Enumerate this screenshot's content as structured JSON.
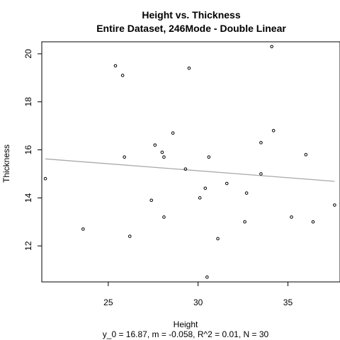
{
  "chart_data": {
    "type": "scatter",
    "title": "Height vs. Thickness",
    "subtitle": "Entire Dataset, 246Mode - Double Linear",
    "xlabel": "Height",
    "ylabel": "Thickness",
    "footer": "y_0 = 16.87, m = -0.058, R^2 = 0.01, N = 30",
    "xlim": [
      21.3,
      37.9
    ],
    "ylim": [
      10.5,
      20.5
    ],
    "x_ticks": [
      25,
      30,
      35
    ],
    "y_ticks": [
      12,
      14,
      16,
      18,
      20
    ],
    "grid": false,
    "point_color": "#000000",
    "line_color": "#aaaaaa",
    "fit": {
      "intercept": 16.87,
      "slope": -0.058,
      "x_range": [
        21.5,
        37.6
      ]
    },
    "points": [
      {
        "x": 21.5,
        "y": 14.8
      },
      {
        "x": 23.6,
        "y": 12.7
      },
      {
        "x": 25.4,
        "y": 19.5
      },
      {
        "x": 25.8,
        "y": 19.1
      },
      {
        "x": 25.9,
        "y": 15.7
      },
      {
        "x": 26.2,
        "y": 12.4
      },
      {
        "x": 27.4,
        "y": 13.9
      },
      {
        "x": 27.6,
        "y": 16.2
      },
      {
        "x": 28.0,
        "y": 15.9
      },
      {
        "x": 28.1,
        "y": 15.7
      },
      {
        "x": 28.1,
        "y": 13.2
      },
      {
        "x": 28.6,
        "y": 16.7
      },
      {
        "x": 29.3,
        "y": 15.2
      },
      {
        "x": 29.5,
        "y": 19.4
      },
      {
        "x": 30.1,
        "y": 14.0
      },
      {
        "x": 30.4,
        "y": 14.4
      },
      {
        "x": 30.5,
        "y": 10.7
      },
      {
        "x": 30.6,
        "y": 15.7
      },
      {
        "x": 31.1,
        "y": 12.3
      },
      {
        "x": 31.6,
        "y": 14.6
      },
      {
        "x": 32.6,
        "y": 13.0
      },
      {
        "x": 32.7,
        "y": 14.2
      },
      {
        "x": 33.5,
        "y": 16.3
      },
      {
        "x": 33.5,
        "y": 15.0
      },
      {
        "x": 34.1,
        "y": 20.3
      },
      {
        "x": 34.2,
        "y": 16.8
      },
      {
        "x": 35.2,
        "y": 13.2
      },
      {
        "x": 36.0,
        "y": 15.8
      },
      {
        "x": 36.4,
        "y": 13.0
      },
      {
        "x": 37.6,
        "y": 13.7
      }
    ]
  }
}
